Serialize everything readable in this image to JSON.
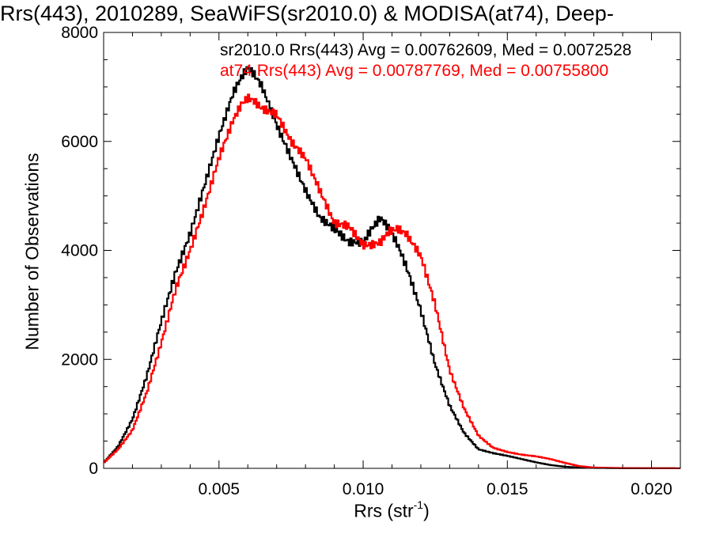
{
  "chart_data": {
    "type": "histogram",
    "title": "Rrs(443), 2010289, SeaWiFS(sr2010.0) & MODISA(at74), Deep-",
    "xlabel": {
      "base": "Rrs (str",
      "sup": "-1",
      "close": ")"
    },
    "ylabel": "Number of Observations",
    "xlim": [
      0.001,
      0.021
    ],
    "ylim": [
      0,
      8000
    ],
    "x_ticks": [
      0.005,
      0.01,
      0.015,
      0.02
    ],
    "x_tick_labels": [
      "0.005",
      "0.010",
      "0.015",
      "0.020"
    ],
    "y_ticks": [
      0,
      2000,
      4000,
      6000,
      8000
    ],
    "y_tick_labels": [
      "0",
      "2000",
      "4000",
      "6000",
      "8000"
    ],
    "legend_placement": "top-right",
    "series": [
      {
        "name": "sr2010.0 Rrs(443) Avg = 0.00762609, Med = 0.0072528",
        "color": "#000000",
        "x": [
          0.001,
          0.0015,
          0.002,
          0.0025,
          0.003,
          0.0035,
          0.004,
          0.0045,
          0.005,
          0.0055,
          0.0058,
          0.006,
          0.0062,
          0.0065,
          0.007,
          0.0075,
          0.008,
          0.0085,
          0.009,
          0.0095,
          0.01,
          0.0103,
          0.0106,
          0.0109,
          0.0112,
          0.0115,
          0.012,
          0.0125,
          0.013,
          0.0135,
          0.014,
          0.0145,
          0.015,
          0.0155,
          0.016,
          0.0165,
          0.017,
          0.0175,
          0.018,
          0.019,
          0.02,
          0.021
        ],
        "y": [
          100,
          400,
          900,
          1700,
          2700,
          3600,
          4300,
          5200,
          6100,
          6900,
          7200,
          7350,
          7250,
          7000,
          6300,
          5700,
          5100,
          4600,
          4400,
          4150,
          4150,
          4400,
          4600,
          4400,
          4100,
          3700,
          2900,
          1900,
          1150,
          650,
          350,
          280,
          230,
          170,
          110,
          60,
          30,
          15,
          8,
          4,
          2,
          1
        ]
      },
      {
        "name": "at74 Rrs(443) Avg = 0.00787769, Med = 0.00755800",
        "color": "#ff0000",
        "x": [
          0.001,
          0.0015,
          0.002,
          0.0025,
          0.003,
          0.0035,
          0.004,
          0.0045,
          0.005,
          0.0055,
          0.0058,
          0.006,
          0.0062,
          0.0065,
          0.007,
          0.0075,
          0.008,
          0.0085,
          0.009,
          0.0095,
          0.01,
          0.0103,
          0.0106,
          0.0109,
          0.0112,
          0.0115,
          0.012,
          0.0125,
          0.013,
          0.0135,
          0.014,
          0.0145,
          0.015,
          0.0155,
          0.016,
          0.0165,
          0.017,
          0.0175,
          0.018,
          0.019,
          0.02,
          0.021
        ],
        "y": [
          100,
          350,
          700,
          1400,
          2300,
          3300,
          4000,
          4800,
          5700,
          6400,
          6700,
          6800,
          6750,
          6600,
          6500,
          6000,
          5700,
          5100,
          4500,
          4450,
          4100,
          4100,
          4150,
          4350,
          4400,
          4300,
          3900,
          3000,
          1800,
          1100,
          600,
          380,
          300,
          250,
          220,
          170,
          100,
          40,
          15,
          5,
          2,
          1
        ]
      }
    ]
  }
}
